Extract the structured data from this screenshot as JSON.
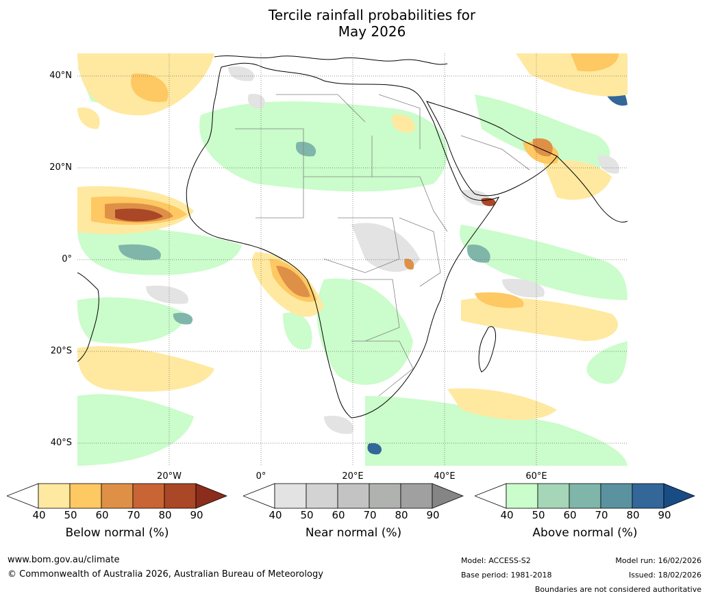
{
  "title": {
    "line1": "Tercile rainfall probabilities for",
    "line2": "May 2026"
  },
  "map": {
    "lat_labels": [
      "40°N",
      "20°N",
      "0°",
      "20°S",
      "40°S"
    ],
    "lon_labels": [
      "20°W",
      "0°",
      "20°E",
      "40°E",
      "60°E"
    ]
  },
  "legends": [
    {
      "title": "Below normal (%)",
      "ticks": [
        "40",
        "50",
        "60",
        "70",
        "80",
        "90"
      ],
      "colors": [
        "#ffffff",
        "#ffe9a0",
        "#fec862",
        "#df9047",
        "#c96434",
        "#a94727",
        "#8c2c1c"
      ]
    },
    {
      "title": "Near normal (%)",
      "ticks": [
        "40",
        "50",
        "60",
        "70",
        "80",
        "90"
      ],
      "colors": [
        "#ffffff",
        "#e3e3e3",
        "#d3d3d3",
        "#c3c3c3",
        "#b0b2b0",
        "#a0a0a0",
        "#858585"
      ]
    },
    {
      "title": "Above normal (%)",
      "ticks": [
        "40",
        "50",
        "60",
        "70",
        "80",
        "90"
      ],
      "colors": [
        "#ffffff",
        "#cbfccb",
        "#a5d6b7",
        "#80b6aa",
        "#5a92a0",
        "#336699",
        "#194c84"
      ]
    }
  ],
  "footer": {
    "website": "www.bom.gov.au/climate",
    "copyright": "© Commonwealth of Australia 2026, Australian Bureau of Meteorology",
    "model": "Model: ACCESS-S2",
    "base_period": "Base period: 1981-2018",
    "model_run": "Model run: 16/02/2026",
    "issued": "Issued: 18/02/2026",
    "disclaimer": "Boundaries are not considered authoritative"
  }
}
